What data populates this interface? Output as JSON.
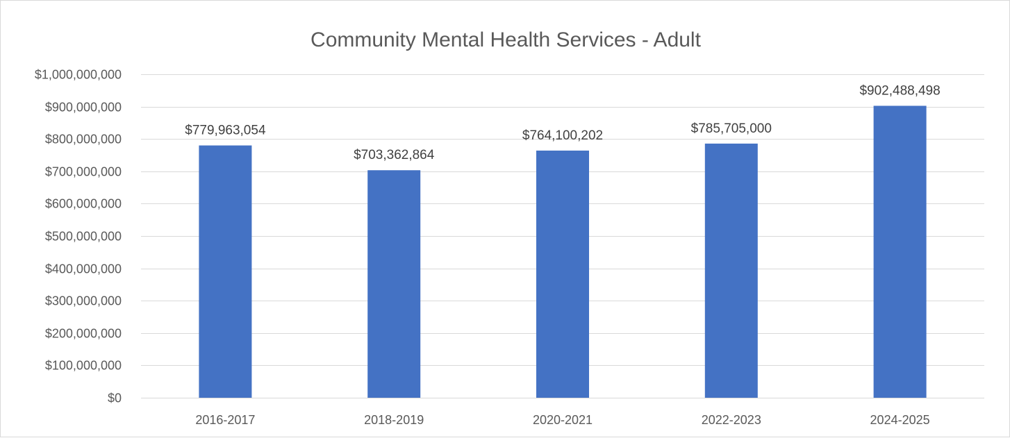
{
  "chart_data": {
    "type": "bar",
    "title": "Community Mental Health Services - Adult",
    "xlabel": "",
    "ylabel": "",
    "categories": [
      "2016-2017",
      "2018-2019",
      "2020-2021",
      "2022-2023",
      "2024-2025"
    ],
    "values": [
      779963054,
      703362864,
      764100202,
      785705000,
      902488498
    ],
    "data_labels": [
      "$779,963,054",
      "$703,362,864",
      "$764,100,202",
      "$785,705,000",
      "$902,488,498"
    ],
    "ylim": [
      0,
      1000000000
    ],
    "yticks": [
      0,
      100000000,
      200000000,
      300000000,
      400000000,
      500000000,
      600000000,
      700000000,
      800000000,
      900000000,
      1000000000
    ],
    "ytick_labels": [
      "$0",
      "$100,000,000",
      "$200,000,000",
      "$300,000,000",
      "$400,000,000",
      "$500,000,000",
      "$600,000,000",
      "$700,000,000",
      "$800,000,000",
      "$900,000,000",
      "$1,000,000,000"
    ],
    "grid": true,
    "legend": "none",
    "bar_color": "#4472C4",
    "grid_color": "#D9D9D9"
  }
}
